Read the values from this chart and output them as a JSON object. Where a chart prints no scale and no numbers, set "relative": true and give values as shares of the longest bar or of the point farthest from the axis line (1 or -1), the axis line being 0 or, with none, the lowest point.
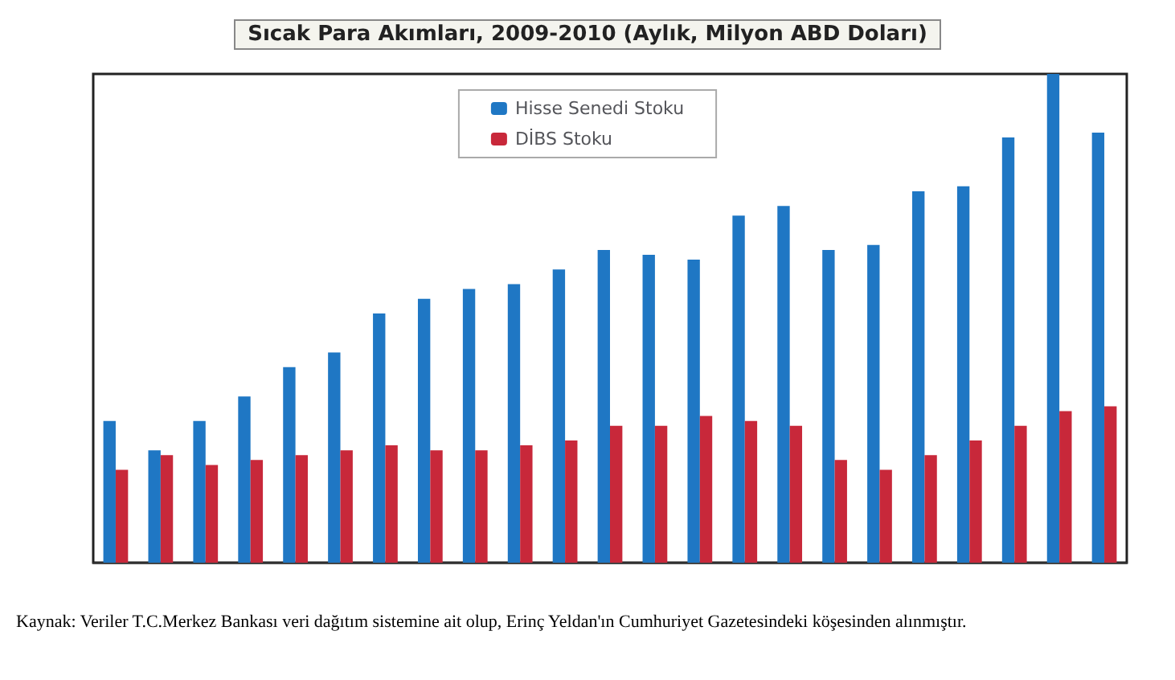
{
  "chart_data": {
    "type": "bar",
    "title": "Sıcak Para Akımları, 2009-2010 (Aylık, Milyon ABD Doları)",
    "relative": true,
    "legend": "top",
    "categories": [
      null,
      null,
      null,
      null,
      null,
      null,
      null,
      null,
      null,
      null,
      null,
      null,
      null,
      null,
      null,
      null,
      null,
      null,
      null,
      null,
      null,
      null,
      null
    ],
    "series": [
      {
        "name": "Hisse Senedi Stoku",
        "color": "#1f77c4",
        "values": [
          0.29,
          0.23,
          0.29,
          0.34,
          0.4,
          0.43,
          0.51,
          0.54,
          0.56,
          0.57,
          0.6,
          0.64,
          0.63,
          0.62,
          0.71,
          0.73,
          0.64,
          0.65,
          0.76,
          0.77,
          0.87,
          1,
          0.88
        ]
      },
      {
        "name": "DİBS Stoku",
        "color": "#c8283a",
        "values": [
          0.19,
          0.22,
          0.2,
          0.21,
          0.22,
          0.23,
          0.24,
          0.23,
          0.23,
          0.24,
          0.25,
          0.28,
          0.28,
          0.3,
          0.29,
          0.28,
          0.21,
          0.19,
          0.22,
          0.25,
          0.28,
          0.31,
          0.32
        ]
      }
    ],
    "annotations": [
      "Kaynak: Veriler T.C.Merkez Bankası veri dağıtım sistemine ait olup, Erinç Yeldan'ın Cumhuriyet Gazetesindeki köşesinden alınmıştır."
    ]
  }
}
